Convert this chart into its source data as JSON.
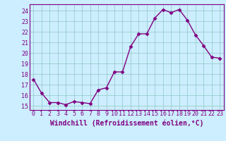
{
  "x": [
    0,
    1,
    2,
    3,
    4,
    5,
    6,
    7,
    8,
    9,
    10,
    11,
    12,
    13,
    14,
    15,
    16,
    17,
    18,
    19,
    20,
    21,
    22,
    23
  ],
  "y": [
    17.5,
    16.2,
    15.3,
    15.3,
    15.1,
    15.4,
    15.3,
    15.2,
    16.5,
    16.7,
    18.2,
    18.2,
    20.6,
    21.8,
    21.8,
    23.3,
    24.1,
    23.8,
    24.1,
    23.1,
    21.7,
    20.7,
    19.6,
    19.5
  ],
  "line_color": "#800080",
  "marker": "D",
  "markersize": 2.5,
  "linewidth": 1.0,
  "background_color": "#cceeff",
  "grid_color": "#99cccc",
  "xlabel": "Windchill (Refroidissement éolien,°C)",
  "xlabel_fontsize": 7,
  "ylabel_ticks": [
    15,
    16,
    17,
    18,
    19,
    20,
    21,
    22,
    23,
    24
  ],
  "ylim": [
    14.6,
    24.6
  ],
  "xlim": [
    -0.5,
    23.5
  ],
  "tick_fontsize": 6,
  "tick_color": "#800080",
  "spine_color": "#800080"
}
